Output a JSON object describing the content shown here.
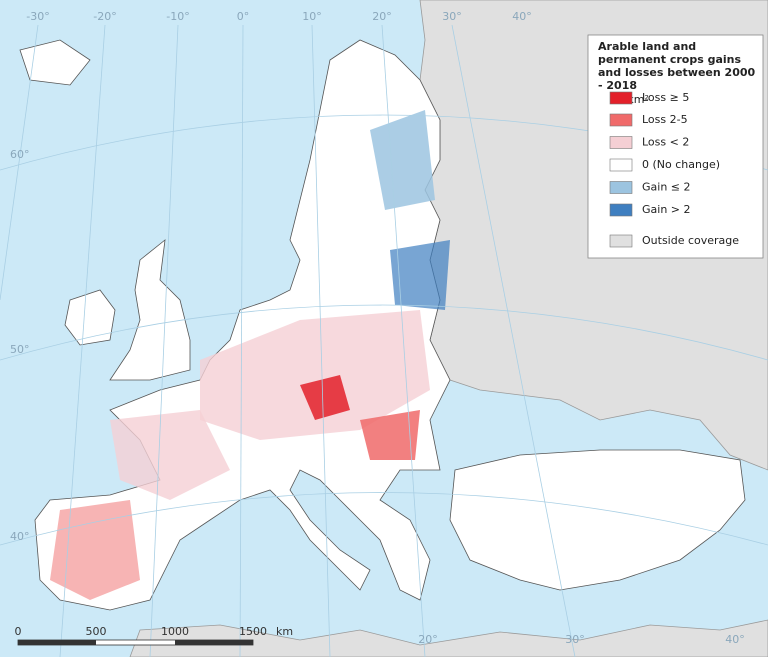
{
  "legend": {
    "title": "Arable land and permanent crops gains and losses between 2000 - 2018",
    "unit": "ha/km²",
    "items": [
      {
        "label": "Loss ≥ 5",
        "color": "#e3202a"
      },
      {
        "label": "Loss 2-5",
        "color": "#f06a6a"
      },
      {
        "label": "Loss < 2",
        "color": "#f5cfd4"
      },
      {
        "label": "0 (No change)",
        "color": "#ffffff"
      },
      {
        "label": "Gain ≤ 2",
        "color": "#9cc4e0"
      },
      {
        "label": "Gain > 2",
        "color": "#3f7fc0"
      },
      {
        "label": "Outside coverage",
        "color": "#e0e0e0"
      }
    ]
  },
  "graticule": {
    "top": [
      "-30°",
      "-20°",
      "-10°",
      "0°",
      "10°",
      "20°",
      "30°",
      "40°"
    ],
    "left": [
      "60°",
      "50°",
      "40°"
    ],
    "bottom": [
      "20°",
      "30°",
      "40°"
    ]
  },
  "scale_bar": {
    "labels": [
      "0",
      "500",
      "1000",
      "1500"
    ],
    "unit": "km"
  }
}
